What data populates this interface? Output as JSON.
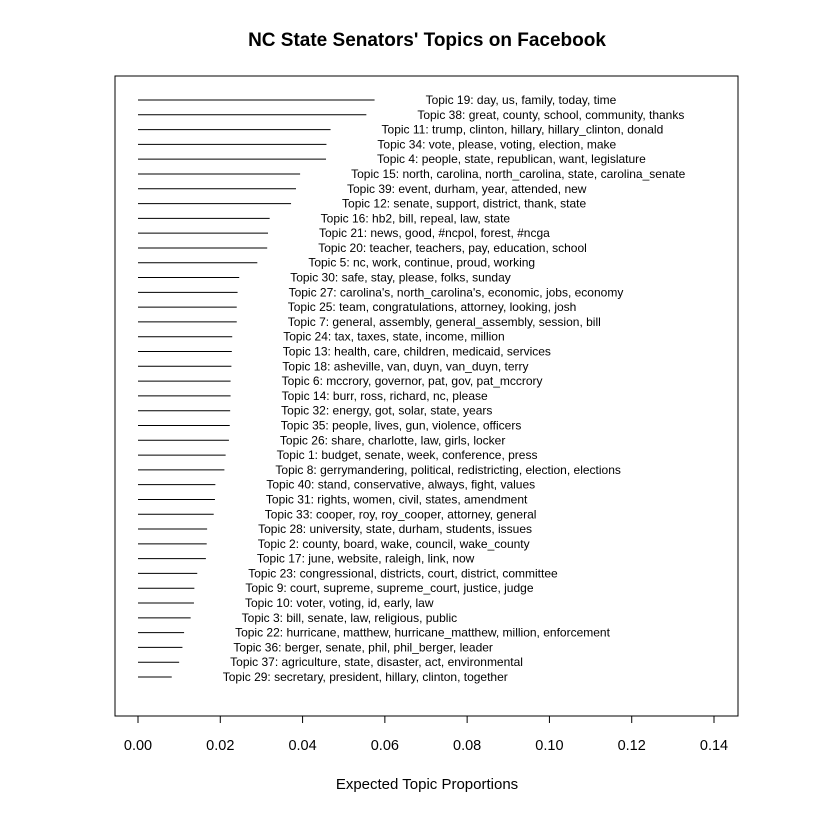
{
  "chart_data": {
    "type": "bar",
    "orientation": "horizontal",
    "title": "NC State Senators' Topics on Facebook",
    "xlabel": "Expected Topic Proportions",
    "xlim": [
      0,
      0.14
    ],
    "xticks": [
      "0.00",
      "0.02",
      "0.04",
      "0.06",
      "0.08",
      "0.10",
      "0.12",
      "0.14"
    ],
    "grid": false,
    "legend": "none",
    "bar_color": "#000000",
    "categories": [
      "Topic 19: day, us, family, today, time",
      "Topic 38: great, county, school, community, thanks",
      "Topic 11: trump, clinton, hillary, hillary_clinton, donald",
      "Topic 34: vote, please, voting, election, make",
      "Topic 4: people, state, republican, want, legislature",
      "Topic 15: north, carolina, north_carolina, state, carolina_senate",
      "Topic 39: event, durham, year, attended, new",
      "Topic 12: senate, support, district, thank, state",
      "Topic 16: hb2, bill, repeal, law, state",
      "Topic 21: news, good, #ncpol, forest, #ncga",
      "Topic 20: teacher, teachers, pay, education, school",
      "Topic 5: nc, work, continue, proud, working",
      "Topic 30: safe, stay, please, folks, sunday",
      "Topic 27: carolina's, north_carolina's, economic, jobs, economy",
      "Topic 25: team, congratulations, attorney, looking, josh",
      "Topic 7: general, assembly, general_assembly, session, bill",
      "Topic 24: tax, taxes, state, income, million",
      "Topic 13: health, care, children, medicaid, services",
      "Topic 18: asheville, van, duyn, van_duyn, terry",
      "Topic 6: mccrory, governor, pat, gov, pat_mccrory",
      "Topic 14: burr, ross, richard, nc, please",
      "Topic 32: energy, got, solar, state, years",
      "Topic 35: people, lives, gun, violence, officers",
      "Topic 26: share, charlotte, law, girls, locker",
      "Topic 1: budget, senate, week, conference, press",
      "Topic 8: gerrymandering, political, redistricting, election, elections",
      "Topic 40: stand, conservative, always, fight, values",
      "Topic 31: rights, women, civil, states, amendment",
      "Topic 33: cooper, roy, roy_cooper, attorney, general",
      "Topic 28: university, state, durham, students, issues",
      "Topic 2: county, board, wake, council, wake_county",
      "Topic 17: june, website, raleigh, link, now",
      "Topic 23: congressional, districts, court, district, committee",
      "Topic 9: court, supreme, supreme_court, justice, judge",
      "Topic 10: voter, voting, id, early, law",
      "Topic 3: bill, senate, law, religious, public",
      "Topic 22: hurricane, matthew, hurricane_matthew, million, enforcement",
      "Topic 36: berger, senate, phil, phil_berger, leader",
      "Topic 37: agriculture, state, disaster, act, environmental",
      "Topic 29: secretary, president, hillary, clinton, together"
    ],
    "values": [
      0.0575,
      0.0555,
      0.0468,
      0.0458,
      0.0457,
      0.0394,
      0.0384,
      0.0372,
      0.032,
      0.0316,
      0.0314,
      0.029,
      0.0246,
      0.0242,
      0.024,
      0.024,
      0.0229,
      0.0228,
      0.0227,
      0.0225,
      0.0225,
      0.0224,
      0.0223,
      0.0221,
      0.0213,
      0.021,
      0.0188,
      0.0187,
      0.0184,
      0.0168,
      0.0167,
      0.0165,
      0.0144,
      0.0137,
      0.0136,
      0.0128,
      0.0112,
      0.0108,
      0.01,
      0.0082
    ]
  }
}
